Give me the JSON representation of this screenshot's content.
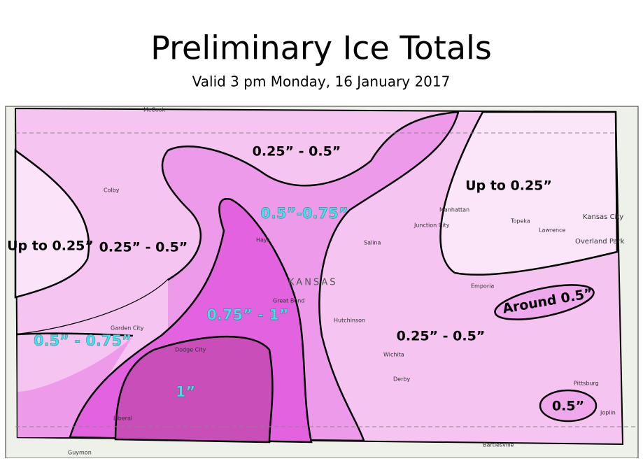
{
  "header": {
    "title": "Preliminary Ice Totals",
    "subtitle": "Valid 3 pm Monday, 16 January 2017"
  },
  "zones": [
    {
      "label": "0.25” - 0.5”"
    },
    {
      "label": "0.5”-0.75”"
    },
    {
      "label": "Up to 0.25”"
    },
    {
      "label": "Up to 0.25”"
    },
    {
      "label": "0.25” - 0.5”"
    },
    {
      "label": "0.75” - 1”"
    },
    {
      "label": "Around 0.5”"
    },
    {
      "label": "0.5” - 0.75”"
    },
    {
      "label": "0.25” - 0.5”"
    },
    {
      "label": "1”"
    },
    {
      "label": "0.5”"
    }
  ],
  "places": [
    "McCook",
    "Colby",
    "Hays",
    "Great Bend",
    "Garden City",
    "Dodge City",
    "Liberal",
    "Hutchinson",
    "Salina",
    "Manhattan",
    "Junction City",
    "Topeka",
    "Lawrence",
    "Kansas City",
    "Overland Park",
    "Emporia",
    "Wichita",
    "Derby",
    "Pittsburg",
    "Joplin",
    "Bartlesville",
    "Guymon",
    "KANSAS"
  ]
}
